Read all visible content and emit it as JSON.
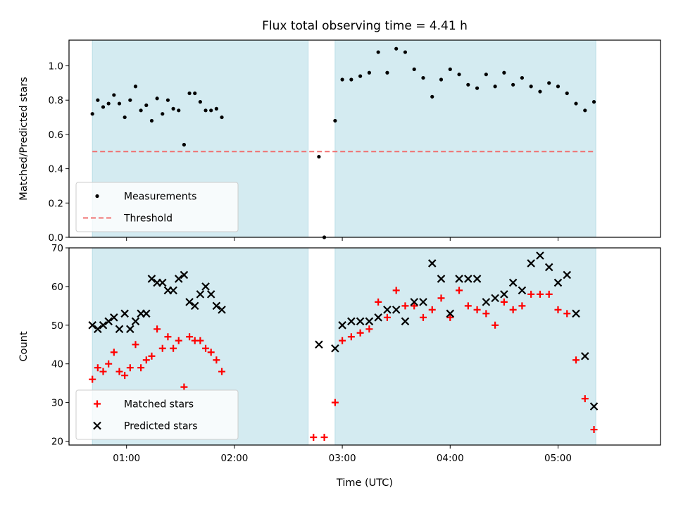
{
  "chart_data": {
    "type": "scatter",
    "title": "Flux total observing time = 4.41 h",
    "xlabel": "Time (UTC)",
    "xlim": [
      "00:28",
      "05:57"
    ],
    "xticks": [
      "01:00",
      "02:00",
      "03:00",
      "04:00",
      "05:00"
    ],
    "shaded_intervals": [
      [
        "00:41",
        "02:41"
      ],
      [
        "02:56",
        "05:21"
      ]
    ],
    "shade_color": "#d4ebf1",
    "panels": [
      {
        "name": "ratio",
        "ylabel": "Matched/Predicted stars",
        "ylim": [
          0,
          1.15
        ],
        "yticks": [
          "0.0",
          "0.2",
          "0.4",
          "0.6",
          "0.8",
          "1.0"
        ],
        "legend_position": "lower-left",
        "threshold": {
          "name": "Threshold",
          "value": 0.5,
          "color": "#f07070",
          "style": "dashed"
        },
        "series": [
          {
            "name": "Measurements",
            "color": "#000000",
            "marker": "dot",
            "points": [
              [
                "00:41",
                0.72
              ],
              [
                "00:44",
                0.8
              ],
              [
                "00:47",
                0.76
              ],
              [
                "00:50",
                0.78
              ],
              [
                "00:53",
                0.83
              ],
              [
                "00:56",
                0.78
              ],
              [
                "00:59",
                0.7
              ],
              [
                "01:02",
                0.8
              ],
              [
                "01:05",
                0.88
              ],
              [
                "01:08",
                0.74
              ],
              [
                "01:11",
                0.77
              ],
              [
                "01:14",
                0.68
              ],
              [
                "01:17",
                0.81
              ],
              [
                "01:20",
                0.72
              ],
              [
                "01:23",
                0.8
              ],
              [
                "01:26",
                0.75
              ],
              [
                "01:29",
                0.74
              ],
              [
                "01:32",
                0.54
              ],
              [
                "01:35",
                0.84
              ],
              [
                "01:38",
                0.84
              ],
              [
                "01:41",
                0.79
              ],
              [
                "01:44",
                0.74
              ],
              [
                "01:47",
                0.74
              ],
              [
                "01:50",
                0.75
              ],
              [
                "01:53",
                0.7
              ],
              [
                "02:47",
                0.47
              ],
              [
                "02:50",
                0.0
              ],
              [
                "02:56",
                0.68
              ],
              [
                "03:00",
                0.92
              ],
              [
                "03:05",
                0.92
              ],
              [
                "03:10",
                0.94
              ],
              [
                "03:15",
                0.96
              ],
              [
                "03:20",
                1.08
              ],
              [
                "03:25",
                0.96
              ],
              [
                "03:30",
                1.1
              ],
              [
                "03:35",
                1.08
              ],
              [
                "03:40",
                0.98
              ],
              [
                "03:45",
                0.93
              ],
              [
                "03:50",
                0.82
              ],
              [
                "03:55",
                0.92
              ],
              [
                "04:00",
                0.98
              ],
              [
                "04:05",
                0.95
              ],
              [
                "04:10",
                0.89
              ],
              [
                "04:15",
                0.87
              ],
              [
                "04:20",
                0.95
              ],
              [
                "04:25",
                0.88
              ],
              [
                "04:30",
                0.96
              ],
              [
                "04:35",
                0.89
              ],
              [
                "04:40",
                0.93
              ],
              [
                "04:45",
                0.88
              ],
              [
                "04:50",
                0.85
              ],
              [
                "04:55",
                0.9
              ],
              [
                "05:00",
                0.88
              ],
              [
                "05:05",
                0.84
              ],
              [
                "05:10",
                0.78
              ],
              [
                "05:15",
                0.74
              ],
              [
                "05:20",
                0.79
              ]
            ]
          }
        ]
      },
      {
        "name": "counts",
        "ylabel": "Count",
        "ylim": [
          19,
          70
        ],
        "yticks": [
          "20",
          "30",
          "40",
          "50",
          "60",
          "70"
        ],
        "legend_position": "lower-left",
        "series": [
          {
            "name": "Matched stars",
            "color": "#ff0000",
            "marker": "plus",
            "points": [
              [
                "00:41",
                36
              ],
              [
                "00:44",
                39
              ],
              [
                "00:47",
                38
              ],
              [
                "00:50",
                40
              ],
              [
                "00:53",
                43
              ],
              [
                "00:56",
                38
              ],
              [
                "00:59",
                37
              ],
              [
                "01:02",
                39
              ],
              [
                "01:05",
                45
              ],
              [
                "01:08",
                39
              ],
              [
                "01:11",
                41
              ],
              [
                "01:14",
                42
              ],
              [
                "01:17",
                49
              ],
              [
                "01:20",
                44
              ],
              [
                "01:23",
                47
              ],
              [
                "01:26",
                44
              ],
              [
                "01:29",
                46
              ],
              [
                "01:32",
                34
              ],
              [
                "01:35",
                47
              ],
              [
                "01:38",
                46
              ],
              [
                "01:41",
                46
              ],
              [
                "01:44",
                44
              ],
              [
                "01:47",
                43
              ],
              [
                "01:50",
                41
              ],
              [
                "01:53",
                38
              ],
              [
                "02:44",
                21
              ],
              [
                "02:50",
                21
              ],
              [
                "02:56",
                30
              ],
              [
                "03:00",
                46
              ],
              [
                "03:05",
                47
              ],
              [
                "03:10",
                48
              ],
              [
                "03:15",
                49
              ],
              [
                "03:20",
                56
              ],
              [
                "03:25",
                52
              ],
              [
                "03:30",
                59
              ],
              [
                "03:35",
                55
              ],
              [
                "03:40",
                55
              ],
              [
                "03:45",
                52
              ],
              [
                "03:50",
                54
              ],
              [
                "03:55",
                57
              ],
              [
                "04:00",
                52
              ],
              [
                "04:05",
                59
              ],
              [
                "04:10",
                55
              ],
              [
                "04:15",
                54
              ],
              [
                "04:20",
                53
              ],
              [
                "04:25",
                50
              ],
              [
                "04:30",
                56
              ],
              [
                "04:35",
                54
              ],
              [
                "04:40",
                55
              ],
              [
                "04:45",
                58
              ],
              [
                "04:50",
                58
              ],
              [
                "04:55",
                58
              ],
              [
                "05:00",
                54
              ],
              [
                "05:05",
                53
              ],
              [
                "05:10",
                41
              ],
              [
                "05:15",
                31
              ],
              [
                "05:20",
                23
              ]
            ]
          },
          {
            "name": "Predicted stars",
            "color": "#000000",
            "marker": "x",
            "points": [
              [
                "00:41",
                50
              ],
              [
                "00:44",
                49
              ],
              [
                "00:47",
                50
              ],
              [
                "00:50",
                51
              ],
              [
                "00:53",
                52
              ],
              [
                "00:56",
                49
              ],
              [
                "00:59",
                53
              ],
              [
                "01:02",
                49
              ],
              [
                "01:05",
                51
              ],
              [
                "01:08",
                53
              ],
              [
                "01:11",
                53
              ],
              [
                "01:14",
                62
              ],
              [
                "01:17",
                61
              ],
              [
                "01:20",
                61
              ],
              [
                "01:23",
                59
              ],
              [
                "01:26",
                59
              ],
              [
                "01:29",
                62
              ],
              [
                "01:32",
                63
              ],
              [
                "01:35",
                56
              ],
              [
                "01:38",
                55
              ],
              [
                "01:41",
                58
              ],
              [
                "01:44",
                60
              ],
              [
                "01:47",
                58
              ],
              [
                "01:50",
                55
              ],
              [
                "01:53",
                54
              ],
              [
                "02:47",
                45
              ],
              [
                "02:56",
                44
              ],
              [
                "03:00",
                50
              ],
              [
                "03:05",
                51
              ],
              [
                "03:10",
                51
              ],
              [
                "03:15",
                51
              ],
              [
                "03:20",
                52
              ],
              [
                "03:25",
                54
              ],
              [
                "03:30",
                54
              ],
              [
                "03:35",
                51
              ],
              [
                "03:40",
                56
              ],
              [
                "03:45",
                56
              ],
              [
                "03:50",
                66
              ],
              [
                "03:55",
                62
              ],
              [
                "04:00",
                53
              ],
              [
                "04:05",
                62
              ],
              [
                "04:10",
                62
              ],
              [
                "04:15",
                62
              ],
              [
                "04:20",
                56
              ],
              [
                "04:25",
                57
              ],
              [
                "04:30",
                58
              ],
              [
                "04:35",
                61
              ],
              [
                "04:40",
                59
              ],
              [
                "04:45",
                66
              ],
              [
                "04:50",
                68
              ],
              [
                "04:55",
                65
              ],
              [
                "05:00",
                61
              ],
              [
                "05:05",
                63
              ],
              [
                "05:10",
                53
              ],
              [
                "05:15",
                42
              ],
              [
                "05:20",
                29
              ]
            ]
          }
        ]
      }
    ]
  }
}
